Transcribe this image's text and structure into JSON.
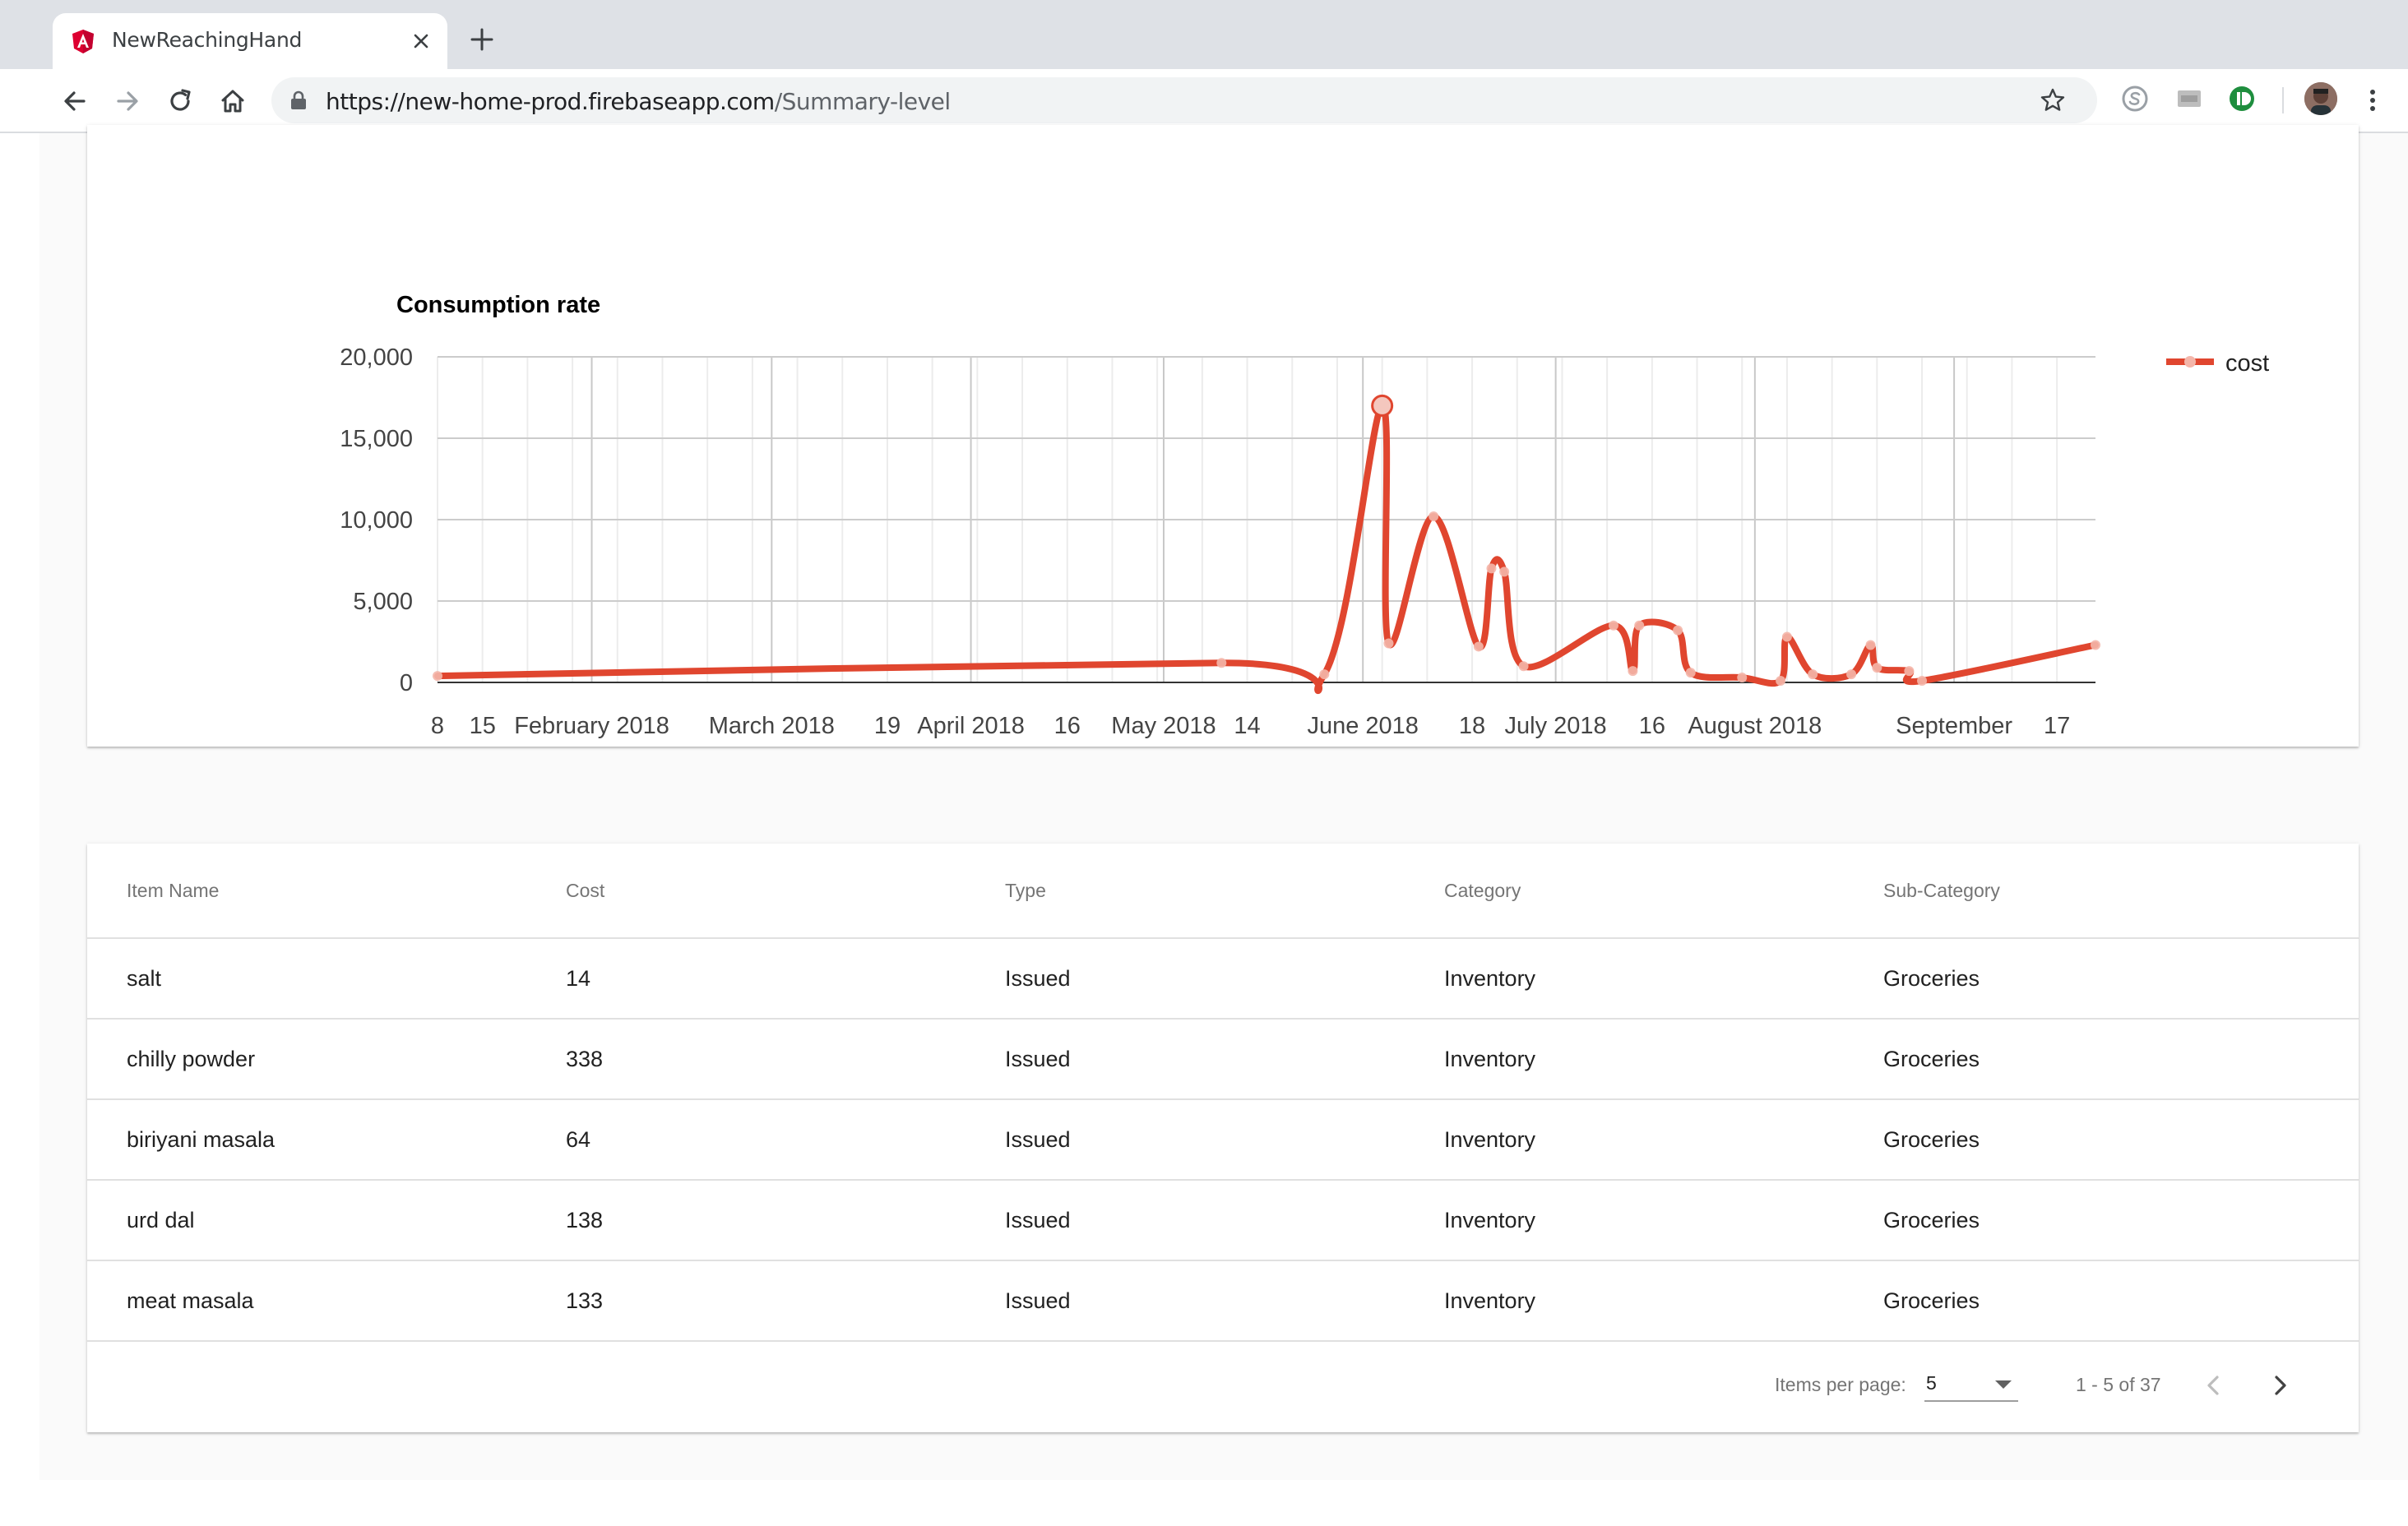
{
  "browser": {
    "tab_title": "NewReachingHand",
    "url_host": "https://new-home-prod.firebaseapp.com",
    "url_path": "/Summary-level"
  },
  "chart_data": {
    "type": "line",
    "title": "Consumption rate",
    "ylim": [
      0,
      20000
    ],
    "y_ticks": [
      "20,000",
      "15,000",
      "10,000",
      "5,000",
      "0"
    ],
    "x_tick_labels": [
      "8",
      "15",
      "February 2018",
      "March 2018",
      "19",
      "April 2018",
      "16",
      "May 2018",
      "14",
      "June 2018",
      "18",
      "July 2018",
      "16",
      "August 2018",
      "September 2018",
      "17"
    ],
    "legend_position": "right",
    "grid": true,
    "series": [
      {
        "name": "cost",
        "color": "#e0462f",
        "x": [
          "2018-01-08",
          "2018-05-10",
          "2018-05-26",
          "2018-06-04",
          "2018-06-05",
          "2018-06-12",
          "2018-06-19",
          "2018-06-21",
          "2018-06-23",
          "2018-06-26",
          "2018-07-10",
          "2018-07-13",
          "2018-07-14",
          "2018-07-20",
          "2018-07-22",
          "2018-07-30",
          "2018-08-05",
          "2018-08-06",
          "2018-08-10",
          "2018-08-16",
          "2018-08-19",
          "2018-08-20",
          "2018-08-25",
          "2018-08-27",
          "2018-09-23"
        ],
        "values": [
          400,
          1200,
          500,
          17000,
          2400,
          10200,
          2200,
          7000,
          6800,
          1000,
          3500,
          700,
          3500,
          3200,
          600,
          300,
          100,
          2800,
          500,
          500,
          2300,
          900,
          700,
          100,
          2300
        ]
      }
    ]
  },
  "table": {
    "columns": [
      "Item Name",
      "Cost",
      "Type",
      "Category",
      "Sub-Category"
    ],
    "rows": [
      [
        "salt",
        "14",
        "Issued",
        "Inventory",
        "Groceries"
      ],
      [
        "chilly powder",
        "338",
        "Issued",
        "Inventory",
        "Groceries"
      ],
      [
        "biriyani masala",
        "64",
        "Issued",
        "Inventory",
        "Groceries"
      ],
      [
        "urd dal",
        "138",
        "Issued",
        "Inventory",
        "Groceries"
      ],
      [
        "meat masala",
        "133",
        "Issued",
        "Inventory",
        "Groceries"
      ]
    ]
  },
  "paginator": {
    "items_per_page_label": "Items per page:",
    "page_size": "5",
    "range": "1 - 5 of 37"
  }
}
